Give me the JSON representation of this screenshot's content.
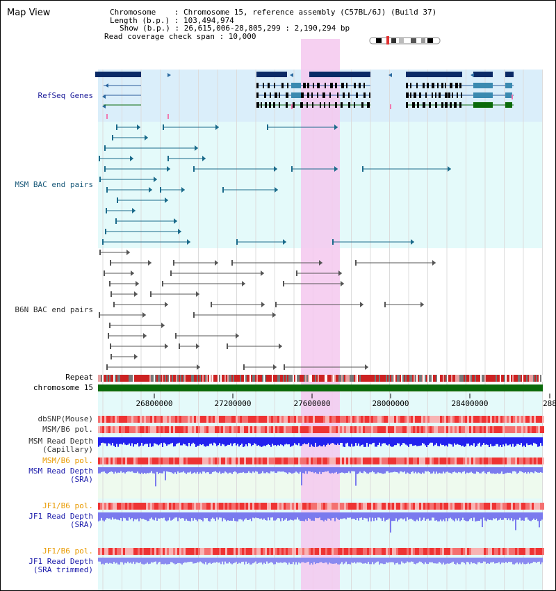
{
  "app_title": "Map View",
  "info": {
    "chromosome_row": "Chromosome    : Chromosome 15, reference assembly (C57BL/6J) (Build 37)",
    "length_row": "Length (b.p.) : 103,494,974",
    "show_row": "Show (b.p.) : 26,615,006-28,805,299 : 2,190,294 bp",
    "span_row": "Read coverage check span : 10,000"
  },
  "tracks": {
    "refseq": "RefSeq Genes",
    "msm_bac": "MSM BAC end pairs",
    "b6n_bac": "B6N BAC end pairs",
    "repeat": "Repeat",
    "chromosome": "chromosome 15",
    "dbsnp": "dbSNP(Mouse)",
    "msm_b6_pol_1": "MSM/B6 pol.",
    "msm_depth_cap_1": "MSM Read Depth",
    "msm_depth_cap_2": "(Capillary)",
    "msm_b6_pol_2": "MSM/B6 pol.",
    "msm_depth_sra_1": "MSM Read Depth",
    "msm_depth_sra_2": "(SRA)",
    "jf1_pol_1": "JF1/B6 pol.",
    "jf1_depth_1": "JF1 Read Depth",
    "jf1_depth_2": "(SRA)",
    "jf1_pol_2": "JF1/B6 pol.",
    "jf1_trim_1": "JF1 Read Depth",
    "jf1_trim_2": "(SRA trimmed)"
  },
  "ruler": {
    "ticks": [
      "26800000",
      "27200000",
      "27600000",
      "28000000",
      "28400000",
      "288"
    ]
  },
  "colors": {
    "refseq_label": "#1a1a99",
    "msm_bac_label": "#1a5a7a",
    "b6n_bac_label": "#333333",
    "orange_label": "#e89a00",
    "blue_label": "#1a1aaa",
    "highlight": "#f5c8ee",
    "gene_navy": "#0a2a66",
    "gene_teal": "#3a8ab0",
    "gene_green": "#0a6a0a",
    "chromosome_bar": "#0a6a0a",
    "depth_blue": "#2222ee",
    "depth_light": "#7a7aee"
  }
}
